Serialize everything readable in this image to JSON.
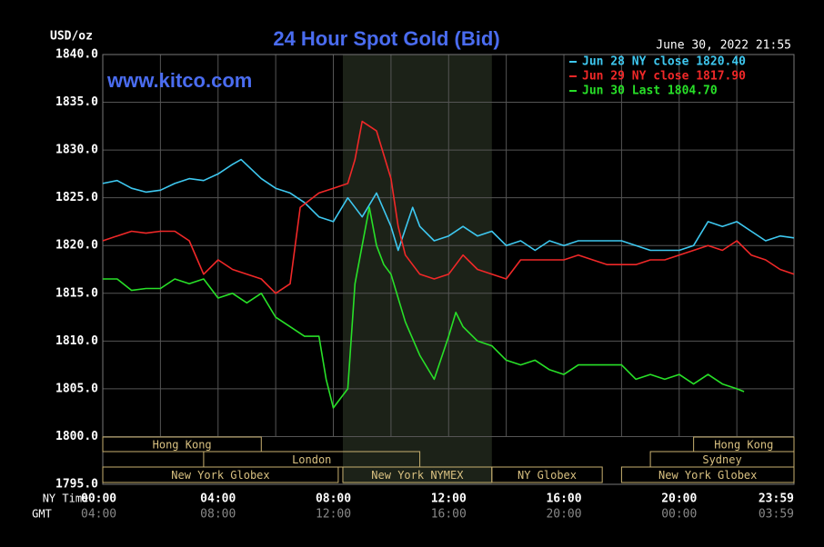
{
  "chart_data": {
    "type": "line",
    "title": "24 Hour Spot Gold (Bid)",
    "y_label": "USD/oz",
    "watermark": "www.kitco.com",
    "timestamp": "June 30, 2022 21:55",
    "x_label": "NY Time",
    "x2_label": "GMT",
    "xlim": [
      0,
      23.983
    ],
    "xticks": [
      {
        "value": 0,
        "label": "00:00",
        "gmt": "04:00"
      },
      {
        "value": 4,
        "label": "04:00",
        "gmt": "08:00"
      },
      {
        "value": 8,
        "label": "08:00",
        "gmt": "12:00"
      },
      {
        "value": 12,
        "label": "12:00",
        "gmt": "16:00"
      },
      {
        "value": 16,
        "label": "16:00",
        "gmt": "20:00"
      },
      {
        "value": 20,
        "label": "20:00",
        "gmt": "00:00"
      },
      {
        "value": 23.983,
        "label": "23:59",
        "gmt": "03:59"
      }
    ],
    "xminor": [
      2,
      6,
      10,
      14,
      18,
      22
    ],
    "ylim": [
      1795,
      1840
    ],
    "yticks": [
      {
        "value": 1795,
        "label": "1795.0"
      },
      {
        "value": 1800,
        "label": "1800.0"
      },
      {
        "value": 1805,
        "label": "1805.0"
      },
      {
        "value": 1810,
        "label": "1810.0"
      },
      {
        "value": 1815,
        "label": "1815.0"
      },
      {
        "value": 1820,
        "label": "1820.0"
      },
      {
        "value": 1825,
        "label": "1825.0"
      },
      {
        "value": 1830,
        "label": "1830.0"
      },
      {
        "value": 1835,
        "label": "1835.0"
      },
      {
        "value": 1840,
        "label": "1840.0"
      }
    ],
    "grid": true,
    "sessions": [
      {
        "name": "Hong Kong",
        "start": 0,
        "end": 5.5,
        "row": 1
      },
      {
        "name": "Hong Kong",
        "start": 20.5,
        "end": 23.983,
        "row": 1
      },
      {
        "name": "London",
        "start": 3.5,
        "end": 11,
        "row": 2
      },
      {
        "name": "Sydney",
        "start": 19,
        "end": 23.983,
        "row": 2
      },
      {
        "name": "New York Globex",
        "start": 0,
        "end": 8.17,
        "row": 3
      },
      {
        "name": "New York NYMEX",
        "start": 8.33,
        "end": 13.5,
        "row": 3,
        "highlight": true
      },
      {
        "name": "NY Globex",
        "start": 13.5,
        "end": 17.33,
        "row": 3
      },
      {
        "name": "New York Globex",
        "start": 18,
        "end": 23.983,
        "row": 3
      }
    ],
    "series": [
      {
        "name": "Jun 28 NY close 1820.40",
        "color": "#3ec8f0",
        "x": [
          0,
          0.5,
          1,
          1.5,
          2,
          2.5,
          3,
          3.5,
          4,
          4.5,
          4.8,
          5.5,
          6,
          6.5,
          7,
          7.5,
          8,
          8.5,
          9,
          9.5,
          10,
          10.25,
          10.75,
          11,
          11.5,
          12,
          12.5,
          13,
          13.5,
          14,
          14.5,
          15,
          15.5,
          16,
          16.5,
          17,
          17.5,
          18,
          18.5,
          19,
          19.5,
          20,
          20.5,
          21,
          21.5,
          22,
          22.5,
          23,
          23.5,
          23.983
        ],
        "values": [
          1826.5,
          1826.8,
          1826,
          1825.6,
          1825.8,
          1826.5,
          1827,
          1826.8,
          1827.5,
          1828.5,
          1829,
          1827,
          1826,
          1825.5,
          1824.5,
          1823,
          1822.5,
          1825,
          1823,
          1825.5,
          1822,
          1819.5,
          1824,
          1822,
          1820.5,
          1821,
          1822,
          1821,
          1821.5,
          1820,
          1820.5,
          1819.5,
          1820.5,
          1820,
          1820.5,
          1820.5,
          1820.5,
          1820.5,
          1820,
          1819.5,
          1819.5,
          1819.5,
          1820,
          1822.5,
          1822,
          1822.5,
          1821.5,
          1820.5,
          1821,
          1820.8
        ]
      },
      {
        "name": "Jun 29 NY close 1817.90",
        "color": "#f02828",
        "x": [
          0,
          0.5,
          1,
          1.5,
          2,
          2.5,
          3,
          3.5,
          4,
          4.5,
          5,
          5.5,
          6,
          6.5,
          6.85,
          7.5,
          8,
          8.5,
          8.75,
          9,
          9.5,
          10,
          10.25,
          10.5,
          11,
          11.5,
          12,
          12.5,
          13,
          13.5,
          14,
          14.5,
          15,
          15.5,
          16,
          16.5,
          17,
          17.5,
          18,
          18.5,
          19,
          19.5,
          20,
          20.5,
          21,
          21.5,
          22,
          22.5,
          23,
          23.5,
          23.983
        ],
        "values": [
          1820.5,
          1821,
          1821.5,
          1821.3,
          1821.5,
          1821.5,
          1820.5,
          1817,
          1818.5,
          1817.5,
          1817,
          1816.5,
          1815,
          1816,
          1824,
          1825.5,
          1826,
          1826.5,
          1829,
          1833,
          1832,
          1827,
          1822,
          1819,
          1817,
          1816.5,
          1817,
          1819,
          1817.5,
          1817,
          1816.5,
          1818.5,
          1818.5,
          1818.5,
          1818.5,
          1819,
          1818.5,
          1818,
          1818,
          1818,
          1818.5,
          1818.5,
          1819,
          1819.5,
          1820,
          1819.5,
          1820.5,
          1819,
          1818.5,
          1817.5,
          1817
        ]
      },
      {
        "name": "Jun 30 Last 1804.70",
        "color": "#28e028",
        "x": [
          0,
          0.5,
          1,
          1.5,
          2,
          2.5,
          3,
          3.5,
          4,
          4.5,
          5,
          5.5,
          6,
          6.5,
          7,
          7.5,
          7.75,
          8,
          8.25,
          8.5,
          8.75,
          9,
          9.25,
          9.5,
          9.75,
          10,
          10.5,
          11,
          11.5,
          12,
          12.25,
          12.5,
          13,
          13.5,
          14,
          14.5,
          15,
          15.5,
          16,
          16.5,
          17,
          17.5,
          18,
          18.5,
          19,
          19.5,
          20,
          20.5,
          21,
          21.5,
          22,
          22.25
        ],
        "values": [
          1816.5,
          1816.5,
          1815.3,
          1815.5,
          1815.5,
          1816.5,
          1816,
          1816.5,
          1814.5,
          1815,
          1814,
          1815,
          1812.5,
          1811.5,
          1810.5,
          1810.5,
          1806,
          1803,
          1804,
          1805,
          1816,
          1820,
          1824,
          1820,
          1818,
          1817,
          1812,
          1808.5,
          1806,
          1810.5,
          1813,
          1811.5,
          1810,
          1809.5,
          1808,
          1807.5,
          1808,
          1807,
          1806.5,
          1807.5,
          1807.5,
          1807.5,
          1807.5,
          1806,
          1806.5,
          1806,
          1806.5,
          1805.5,
          1806.5,
          1805.5,
          1805,
          1804.7
        ]
      }
    ]
  }
}
